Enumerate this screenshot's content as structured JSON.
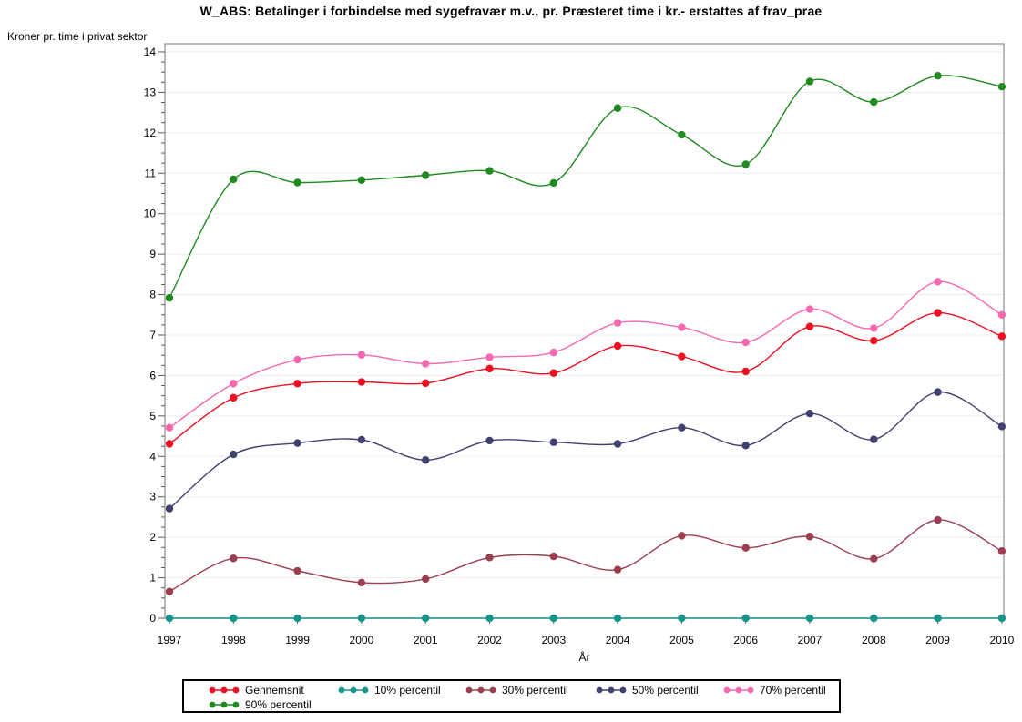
{
  "title": "W_ABS: Betalinger i forbindelse med sygefravær m.v., pr. Præsteret time i kr.- erstattes af frav_prae",
  "y_axis_label": "Kroner pr. time i privat sektor",
  "x_axis_label": "År",
  "colors": {
    "background": "#ffffff",
    "grid": "#ededed",
    "frame": "#8e8e8e",
    "tick": "#5a5a5a",
    "text": "#000000",
    "legend_border": "#000000"
  },
  "chart_data": {
    "type": "line",
    "smooth": true,
    "marker": "circle",
    "grid": true,
    "legend_position": "bottom",
    "title": "W_ABS: Betalinger i forbindelse med sygefravær m.v., pr. Præsteret time i kr.- erstattes af frav_prae",
    "xlabel": "År",
    "ylabel": "Kroner pr. time i privat sektor",
    "ylim": [
      0,
      14
    ],
    "yticks": [
      0,
      1,
      2,
      3,
      4,
      5,
      6,
      7,
      8,
      9,
      10,
      11,
      12,
      13,
      14
    ],
    "x": [
      1997,
      1998,
      1999,
      2000,
      2001,
      2002,
      2003,
      2004,
      2005,
      2006,
      2007,
      2008,
      2009,
      2010
    ],
    "series": [
      {
        "name": "Gennemsnit",
        "color": "#ee0f20",
        "values": [
          4.31,
          5.45,
          5.8,
          5.84,
          5.81,
          6.17,
          6.06,
          6.73,
          6.47,
          6.1,
          7.21,
          6.86,
          7.55,
          6.97
        ]
      },
      {
        "name": "10% percentil",
        "color": "#17948c",
        "values": [
          0,
          0,
          0,
          0,
          0,
          0,
          0,
          0,
          0,
          0,
          0,
          0,
          0,
          0
        ]
      },
      {
        "name": "30% percentil",
        "color": "#9d3d50",
        "values": [
          0.66,
          1.48,
          1.17,
          0.88,
          0.97,
          1.5,
          1.53,
          1.2,
          2.04,
          1.74,
          2.02,
          1.47,
          2.43,
          1.66
        ]
      },
      {
        "name": "50% percentil",
        "color": "#3f4070",
        "values": [
          2.71,
          4.05,
          4.33,
          4.41,
          3.91,
          4.39,
          4.35,
          4.31,
          4.71,
          4.27,
          5.06,
          4.42,
          5.59,
          4.74
        ]
      },
      {
        "name": "70% percentil",
        "color": "#f768b0",
        "values": [
          4.71,
          5.8,
          6.39,
          6.51,
          6.29,
          6.45,
          6.57,
          7.3,
          7.19,
          6.82,
          7.64,
          7.17,
          8.32,
          7.5
        ]
      },
      {
        "name": "90% percentil",
        "color": "#1e8a20",
        "values": [
          7.92,
          10.85,
          10.77,
          10.83,
          10.95,
          11.06,
          10.76,
          12.61,
          11.95,
          11.22,
          13.27,
          12.76,
          13.41,
          13.14
        ]
      }
    ]
  }
}
